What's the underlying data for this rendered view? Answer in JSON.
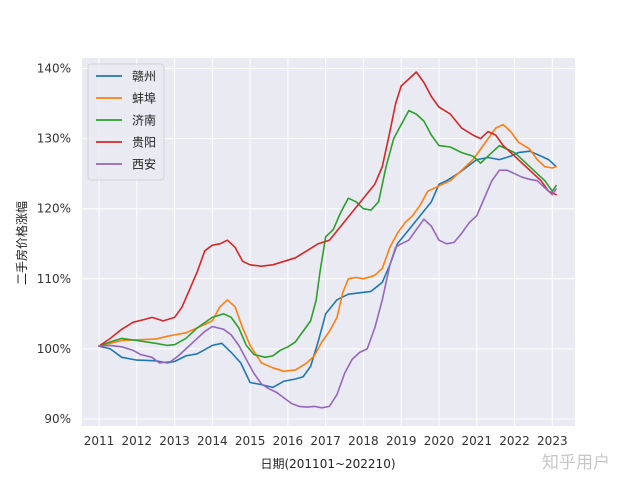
{
  "chart_data": {
    "type": "line",
    "title": "",
    "xlabel": "日期(201101~202210)",
    "ylabel": "二手房价格涨幅",
    "xlim": [
      2010.55,
      2023.6
    ],
    "ylim": [
      89.0,
      141.5
    ],
    "x_ticks": [
      2011,
      2012,
      2013,
      2014,
      2015,
      2016,
      2017,
      2018,
      2019,
      2020,
      2021,
      2022,
      2023
    ],
    "x_tick_labels": [
      "2011",
      "2012",
      "2013",
      "2014",
      "2015",
      "2016",
      "2017",
      "2018",
      "2019",
      "2020",
      "2021",
      "2022",
      "2023"
    ],
    "y_ticks": [
      90,
      100,
      110,
      120,
      130,
      140
    ],
    "y_tick_labels": [
      "90%",
      "100%",
      "110%",
      "120%",
      "130%",
      "140%"
    ],
    "grid": true,
    "background": "#eaeaf2",
    "legend_position": "top-left",
    "series": [
      {
        "name": "赣州",
        "color": "#1f77b4",
        "points": [
          [
            2011.0,
            100.4
          ],
          [
            2011.3,
            100.0
          ],
          [
            2011.6,
            98.8
          ],
          [
            2012.0,
            98.4
          ],
          [
            2012.5,
            98.3
          ],
          [
            2012.8,
            98.0
          ],
          [
            2013.0,
            98.2
          ],
          [
            2013.3,
            99.0
          ],
          [
            2013.6,
            99.3
          ],
          [
            2014.0,
            100.5
          ],
          [
            2014.25,
            100.8
          ],
          [
            2014.5,
            99.5
          ],
          [
            2014.75,
            98.0
          ],
          [
            2015.0,
            95.2
          ],
          [
            2015.3,
            94.9
          ],
          [
            2015.6,
            94.5
          ],
          [
            2015.9,
            95.4
          ],
          [
            2016.2,
            95.7
          ],
          [
            2016.4,
            96.0
          ],
          [
            2016.6,
            97.5
          ],
          [
            2016.8,
            101.0
          ],
          [
            2017.0,
            105.0
          ],
          [
            2017.3,
            107.0
          ],
          [
            2017.6,
            107.8
          ],
          [
            2017.9,
            108.0
          ],
          [
            2018.2,
            108.2
          ],
          [
            2018.5,
            109.5
          ],
          [
            2018.7,
            112.0
          ],
          [
            2018.9,
            115.0
          ],
          [
            2019.2,
            117.0
          ],
          [
            2019.5,
            119.0
          ],
          [
            2019.8,
            121.0
          ],
          [
            2020.0,
            123.5
          ],
          [
            2020.2,
            124.0
          ],
          [
            2020.5,
            125.0
          ],
          [
            2020.8,
            126.2
          ],
          [
            2021.0,
            127.0
          ],
          [
            2021.3,
            127.3
          ],
          [
            2021.6,
            127.0
          ],
          [
            2021.9,
            127.5
          ],
          [
            2022.1,
            128.0
          ],
          [
            2022.4,
            128.2
          ],
          [
            2022.7,
            127.5
          ],
          [
            2022.9,
            127.0
          ],
          [
            2023.1,
            126.0
          ]
        ]
      },
      {
        "name": "蚌埠",
        "color": "#ff7f0e",
        "points": [
          [
            2011.0,
            100.4
          ],
          [
            2011.3,
            100.8
          ],
          [
            2011.6,
            101.2
          ],
          [
            2012.0,
            101.3
          ],
          [
            2012.5,
            101.4
          ],
          [
            2012.8,
            101.8
          ],
          [
            2013.0,
            102.0
          ],
          [
            2013.3,
            102.3
          ],
          [
            2013.6,
            103.0
          ],
          [
            2014.0,
            104.0
          ],
          [
            2014.2,
            106.0
          ],
          [
            2014.4,
            107.0
          ],
          [
            2014.6,
            106.0
          ],
          [
            2014.8,
            103.0
          ],
          [
            2015.0,
            100.5
          ],
          [
            2015.3,
            98.0
          ],
          [
            2015.6,
            97.3
          ],
          [
            2015.9,
            96.8
          ],
          [
            2016.2,
            97.0
          ],
          [
            2016.5,
            98.0
          ],
          [
            2016.7,
            99.0
          ],
          [
            2016.9,
            101.0
          ],
          [
            2017.1,
            102.5
          ],
          [
            2017.3,
            104.5
          ],
          [
            2017.45,
            108.0
          ],
          [
            2017.6,
            110.0
          ],
          [
            2017.8,
            110.2
          ],
          [
            2018.0,
            110.0
          ],
          [
            2018.3,
            110.5
          ],
          [
            2018.5,
            111.5
          ],
          [
            2018.7,
            114.5
          ],
          [
            2018.9,
            116.5
          ],
          [
            2019.1,
            118.0
          ],
          [
            2019.3,
            119.0
          ],
          [
            2019.5,
            120.5
          ],
          [
            2019.7,
            122.5
          ],
          [
            2019.9,
            123.0
          ],
          [
            2020.1,
            123.5
          ],
          [
            2020.3,
            124.0
          ],
          [
            2020.6,
            125.5
          ],
          [
            2020.9,
            127.0
          ],
          [
            2021.1,
            128.5
          ],
          [
            2021.3,
            130.0
          ],
          [
            2021.5,
            131.5
          ],
          [
            2021.7,
            132.0
          ],
          [
            2021.9,
            131.0
          ],
          [
            2022.1,
            129.5
          ],
          [
            2022.4,
            128.5
          ],
          [
            2022.6,
            127.0
          ],
          [
            2022.8,
            126.0
          ],
          [
            2023.0,
            125.8
          ],
          [
            2023.1,
            126.0
          ]
        ]
      },
      {
        "name": "济南",
        "color": "#2ca02c",
        "points": [
          [
            2011.0,
            100.4
          ],
          [
            2011.3,
            101.0
          ],
          [
            2011.6,
            101.5
          ],
          [
            2012.0,
            101.2
          ],
          [
            2012.5,
            100.8
          ],
          [
            2012.8,
            100.5
          ],
          [
            2013.0,
            100.6
          ],
          [
            2013.3,
            101.5
          ],
          [
            2013.6,
            103.0
          ],
          [
            2014.0,
            104.5
          ],
          [
            2014.3,
            105.0
          ],
          [
            2014.5,
            104.5
          ],
          [
            2014.7,
            103.0
          ],
          [
            2014.9,
            100.5
          ],
          [
            2015.1,
            99.2
          ],
          [
            2015.4,
            98.8
          ],
          [
            2015.6,
            99.0
          ],
          [
            2015.8,
            99.8
          ],
          [
            2016.0,
            100.3
          ],
          [
            2016.2,
            101.0
          ],
          [
            2016.4,
            102.5
          ],
          [
            2016.6,
            104.0
          ],
          [
            2016.75,
            107.0
          ],
          [
            2016.85,
            111.0
          ],
          [
            2017.0,
            116.0
          ],
          [
            2017.2,
            117.0
          ],
          [
            2017.4,
            119.5
          ],
          [
            2017.6,
            121.5
          ],
          [
            2017.8,
            121.0
          ],
          [
            2018.0,
            120.0
          ],
          [
            2018.2,
            119.8
          ],
          [
            2018.4,
            121.0
          ],
          [
            2018.6,
            126.0
          ],
          [
            2018.8,
            130.0
          ],
          [
            2019.0,
            132.0
          ],
          [
            2019.2,
            134.0
          ],
          [
            2019.4,
            133.5
          ],
          [
            2019.6,
            132.5
          ],
          [
            2019.8,
            130.5
          ],
          [
            2020.0,
            129.0
          ],
          [
            2020.3,
            128.8
          ],
          [
            2020.6,
            128.0
          ],
          [
            2020.9,
            127.5
          ],
          [
            2021.1,
            126.5
          ],
          [
            2021.3,
            127.5
          ],
          [
            2021.6,
            129.0
          ],
          [
            2021.8,
            128.5
          ],
          [
            2022.0,
            128.0
          ],
          [
            2022.3,
            126.5
          ],
          [
            2022.6,
            125.0
          ],
          [
            2022.8,
            124.0
          ],
          [
            2023.0,
            122.5
          ],
          [
            2023.1,
            123.3
          ]
        ]
      },
      {
        "name": "贵阳",
        "color": "#d62728",
        "points": [
          [
            2011.0,
            100.4
          ],
          [
            2011.3,
            101.5
          ],
          [
            2011.6,
            102.8
          ],
          [
            2011.9,
            103.8
          ],
          [
            2012.2,
            104.2
          ],
          [
            2012.4,
            104.5
          ],
          [
            2012.7,
            104.0
          ],
          [
            2013.0,
            104.5
          ],
          [
            2013.2,
            106.0
          ],
          [
            2013.4,
            108.5
          ],
          [
            2013.6,
            111.0
          ],
          [
            2013.8,
            114.0
          ],
          [
            2014.0,
            114.8
          ],
          [
            2014.2,
            115.0
          ],
          [
            2014.4,
            115.5
          ],
          [
            2014.6,
            114.5
          ],
          [
            2014.8,
            112.5
          ],
          [
            2015.0,
            112.0
          ],
          [
            2015.3,
            111.8
          ],
          [
            2015.6,
            112.0
          ],
          [
            2015.9,
            112.5
          ],
          [
            2016.2,
            113.0
          ],
          [
            2016.5,
            114.0
          ],
          [
            2016.8,
            115.0
          ],
          [
            2017.1,
            115.5
          ],
          [
            2017.4,
            117.5
          ],
          [
            2017.7,
            119.5
          ],
          [
            2018.0,
            121.5
          ],
          [
            2018.3,
            123.5
          ],
          [
            2018.5,
            126.0
          ],
          [
            2018.7,
            131.0
          ],
          [
            2018.85,
            135.0
          ],
          [
            2019.0,
            137.5
          ],
          [
            2019.2,
            138.5
          ],
          [
            2019.4,
            139.5
          ],
          [
            2019.6,
            138.0
          ],
          [
            2019.8,
            136.0
          ],
          [
            2020.0,
            134.5
          ],
          [
            2020.3,
            133.5
          ],
          [
            2020.6,
            131.5
          ],
          [
            2020.9,
            130.5
          ],
          [
            2021.1,
            130.0
          ],
          [
            2021.3,
            131.0
          ],
          [
            2021.5,
            130.5
          ],
          [
            2021.7,
            129.0
          ],
          [
            2021.9,
            128.0
          ],
          [
            2022.1,
            127.0
          ],
          [
            2022.3,
            126.0
          ],
          [
            2022.5,
            125.0
          ],
          [
            2022.7,
            124.0
          ],
          [
            2022.9,
            122.5
          ],
          [
            2023.1,
            122.0
          ]
        ]
      },
      {
        "name": "西安",
        "color": "#9467bd",
        "points": [
          [
            2011.0,
            100.4
          ],
          [
            2011.3,
            100.5
          ],
          [
            2011.6,
            100.3
          ],
          [
            2011.9,
            99.8
          ],
          [
            2012.1,
            99.2
          ],
          [
            2012.4,
            98.8
          ],
          [
            2012.6,
            98.0
          ],
          [
            2012.9,
            98.2
          ],
          [
            2013.1,
            99.0
          ],
          [
            2013.3,
            100.0
          ],
          [
            2013.5,
            101.0
          ],
          [
            2013.8,
            102.5
          ],
          [
            2014.0,
            103.2
          ],
          [
            2014.3,
            102.8
          ],
          [
            2014.5,
            102.0
          ],
          [
            2014.7,
            100.5
          ],
          [
            2014.9,
            98.5
          ],
          [
            2015.1,
            96.5
          ],
          [
            2015.3,
            95.0
          ],
          [
            2015.5,
            94.3
          ],
          [
            2015.7,
            93.8
          ],
          [
            2015.9,
            93.0
          ],
          [
            2016.1,
            92.2
          ],
          [
            2016.3,
            91.8
          ],
          [
            2016.5,
            91.7
          ],
          [
            2016.7,
            91.8
          ],
          [
            2016.9,
            91.6
          ],
          [
            2017.1,
            91.8
          ],
          [
            2017.3,
            93.5
          ],
          [
            2017.5,
            96.5
          ],
          [
            2017.7,
            98.5
          ],
          [
            2017.9,
            99.5
          ],
          [
            2018.1,
            100.0
          ],
          [
            2018.3,
            103.0
          ],
          [
            2018.5,
            107.0
          ],
          [
            2018.7,
            112.0
          ],
          [
            2018.85,
            114.5
          ],
          [
            2019.0,
            115.0
          ],
          [
            2019.2,
            115.5
          ],
          [
            2019.4,
            117.0
          ],
          [
            2019.6,
            118.5
          ],
          [
            2019.8,
            117.5
          ],
          [
            2020.0,
            115.5
          ],
          [
            2020.2,
            115.0
          ],
          [
            2020.4,
            115.2
          ],
          [
            2020.6,
            116.5
          ],
          [
            2020.8,
            118.0
          ],
          [
            2021.0,
            119.0
          ],
          [
            2021.2,
            121.5
          ],
          [
            2021.4,
            124.0
          ],
          [
            2021.6,
            125.5
          ],
          [
            2021.8,
            125.5
          ],
          [
            2022.0,
            125.0
          ],
          [
            2022.2,
            124.5
          ],
          [
            2022.4,
            124.2
          ],
          [
            2022.6,
            124.0
          ],
          [
            2022.8,
            123.0
          ],
          [
            2023.0,
            122.0
          ],
          [
            2023.1,
            122.8
          ]
        ]
      }
    ]
  },
  "watermark": "知乎用户"
}
